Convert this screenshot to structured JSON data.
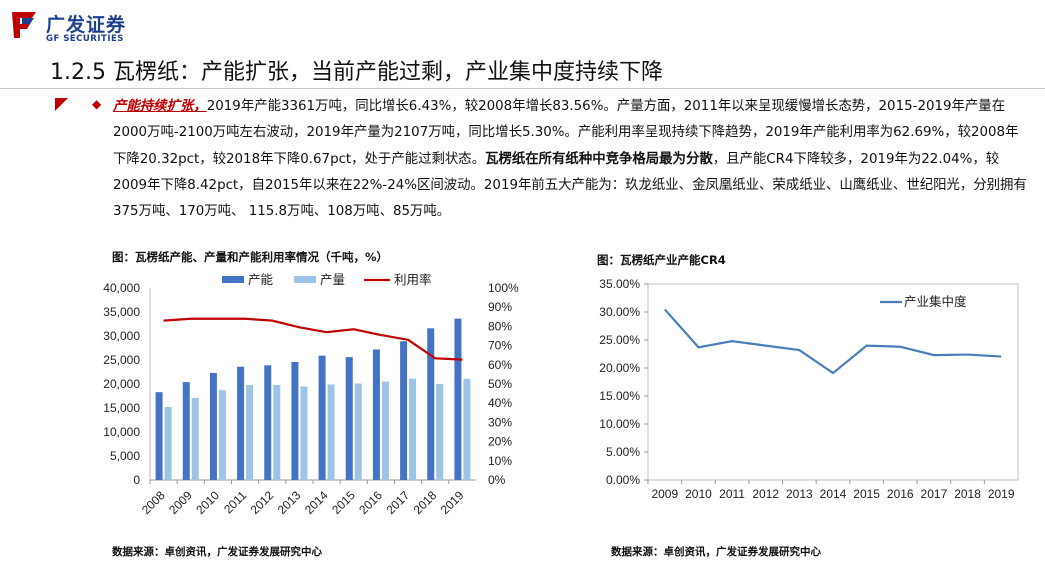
{
  "header": {
    "logo_cn": "广发证券",
    "logo_en": "GF SECURITIES",
    "title": "1.2.5 瓦楞纸：产能扩张，当前产能过剩，产业集中度持续下降"
  },
  "body": {
    "highlight": "产能持续扩张，",
    "text1": "2019年产能3361万吨，同比增长6.43%，较2008年增长83.56%。产量方面，2011年以来呈现缓慢增长态势，2015-2019年产量在2000万吨-2100万吨左右波动，2019年产量为2107万吨，同比增长5.30%。产能利用率呈现持续下降趋势，2019年产能利用率为62.69%，较2008年下降20.32pct，较2018年下降0.67pct，处于产能过剩状态。",
    "bold": "瓦楞纸在所有纸种中竞争格局最为分散",
    "text2": "，且产能CR4下降较多，2019年为22.04%，较2009年下降8.42pct，自2015年以来在22%-24%区间波动。2019年前五大产能为：玖龙纸业、金凤凰纸业、荣成纸业、山鹰纸业、世纪阳光，分别拥有375万吨、170万吨、 115.8万吨、108万吨、85万吨。"
  },
  "figures": {
    "left_caption": "图：瓦楞纸产能、产量和产能利用率情况（千吨，%）",
    "right_caption": "图：瓦楞纸产业产能CR4",
    "left_source": "数据来源：卓创资讯，广发证券发展研究中心",
    "right_source": "数据来源：卓创资讯，广发证券发展研究中心"
  },
  "colors": {
    "brand": "#1f3f8f",
    "accent": "#c00000",
    "capacity": "#4472c4",
    "output": "#9dc3e6",
    "rate": "#c00000",
    "cr4": "#4a7ebb"
  },
  "chart_data": [
    {
      "type": "bar",
      "title": "瓦楞纸产能、产量和产能利用率情况（千吨，%）",
      "categories": [
        "2008",
        "2009",
        "2010",
        "2011",
        "2012",
        "2013",
        "2014",
        "2015",
        "2016",
        "2017",
        "2018",
        "2019"
      ],
      "series": [
        {
          "name": "产能",
          "kind": "bar",
          "axis": "left",
          "values": [
            18300,
            20400,
            22300,
            23600,
            23900,
            24600,
            25900,
            25600,
            27200,
            28900,
            31600,
            33610
          ]
        },
        {
          "name": "产量",
          "kind": "bar",
          "axis": "left",
          "values": [
            15200,
            17100,
            18700,
            19800,
            19800,
            19500,
            19900,
            20100,
            20500,
            21100,
            20010,
            21070
          ]
        },
        {
          "name": "利用率",
          "kind": "line",
          "axis": "right",
          "values": [
            83.0,
            84.0,
            84.0,
            84.0,
            83.0,
            79.5,
            77.0,
            78.5,
            75.5,
            73.0,
            63.36,
            62.69
          ]
        }
      ],
      "ylim_left": [
        0,
        40000
      ],
      "yticks_left": [
        "0",
        "5,000",
        "10,000",
        "15,000",
        "20,000",
        "25,000",
        "30,000",
        "35,000",
        "40,000"
      ],
      "ylim_right": [
        0,
        100
      ],
      "yticks_right": [
        "0%",
        "10%",
        "20%",
        "30%",
        "40%",
        "50%",
        "60%",
        "70%",
        "80%",
        "90%",
        "100%"
      ],
      "legend": "top"
    },
    {
      "type": "line",
      "title": "瓦楞纸产业产能CR4",
      "categories": [
        "2009",
        "2010",
        "2011",
        "2012",
        "2013",
        "2014",
        "2015",
        "2016",
        "2017",
        "2018",
        "2019"
      ],
      "series": [
        {
          "name": "产业集中度",
          "values": [
            30.46,
            23.7,
            24.8,
            24.0,
            23.2,
            19.1,
            24.0,
            23.8,
            22.3,
            22.4,
            22.04
          ]
        }
      ],
      "ylim": [
        0,
        35
      ],
      "yticks": [
        "0.00%",
        "5.00%",
        "10.00%",
        "15.00%",
        "20.00%",
        "25.00%",
        "30.00%",
        "35.00%"
      ],
      "legend": "top-right"
    }
  ]
}
